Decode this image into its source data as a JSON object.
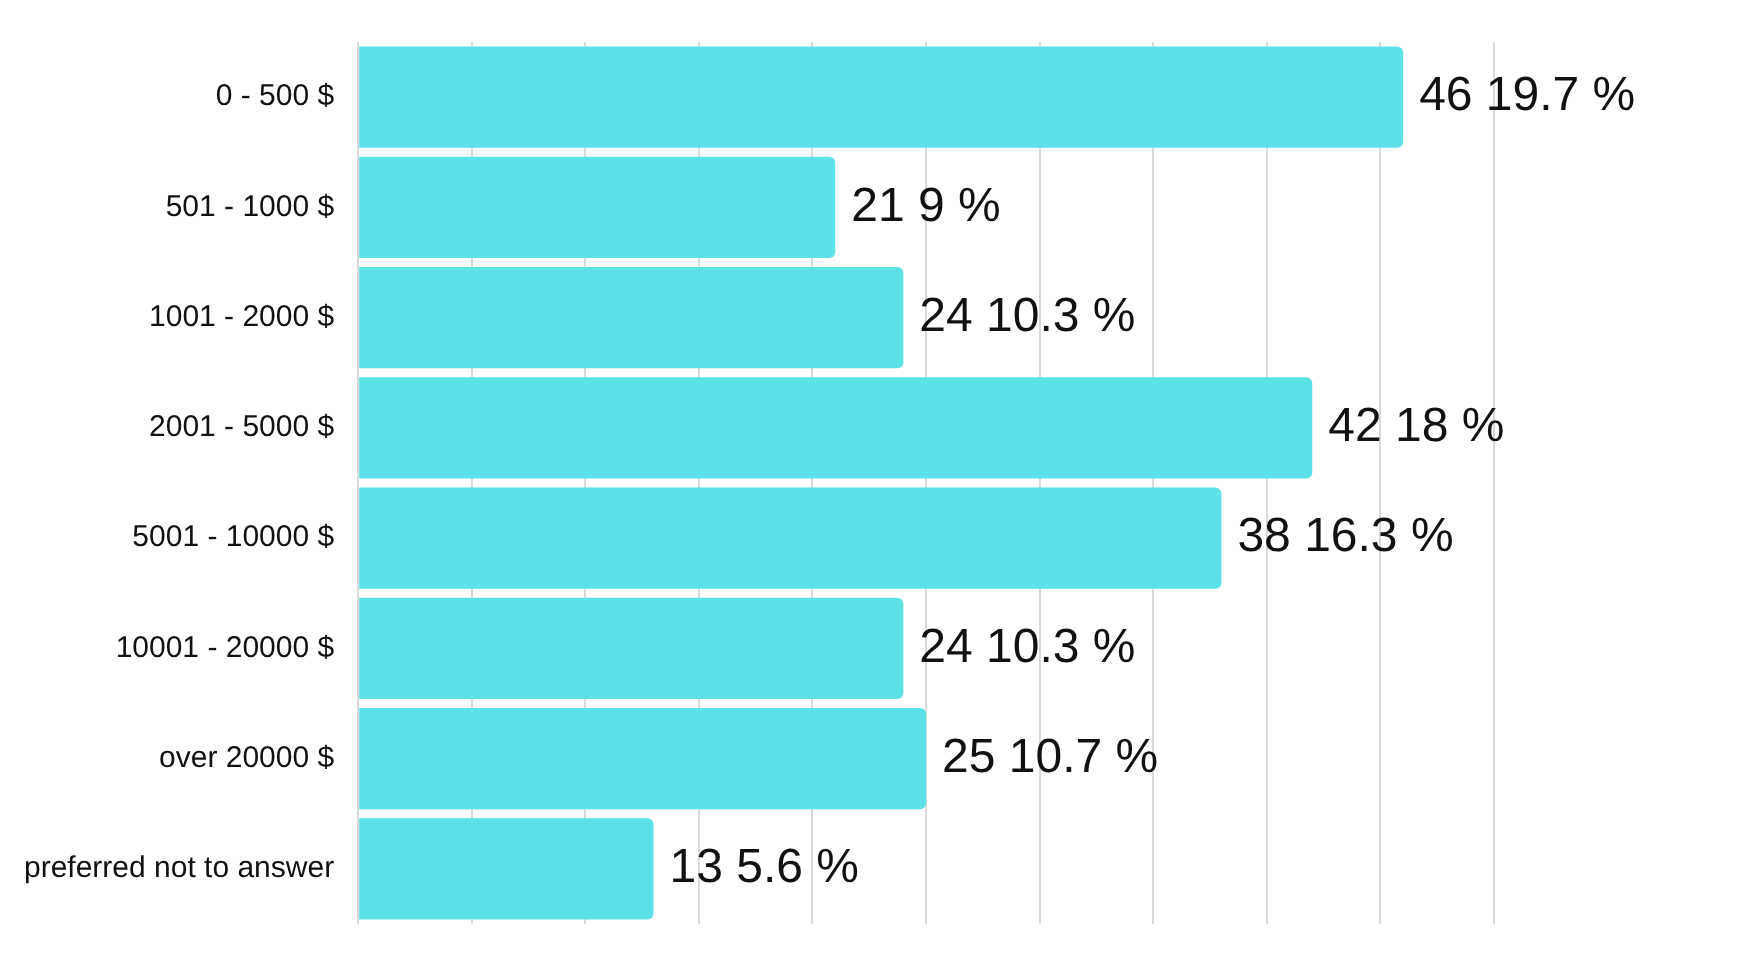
{
  "chart_data": {
    "type": "bar",
    "orientation": "horizontal",
    "categories": [
      "0 - 500 $",
      "501 - 1000 $",
      "1001 - 2000 $",
      "2001 - 5000 $",
      "5001 - 10000 $",
      "10001 - 20000 $",
      "over 20000 $",
      "preferred not to answer"
    ],
    "values": [
      46,
      21,
      24,
      42,
      38,
      24,
      25,
      13
    ],
    "value_labels": [
      "46 19.7 %",
      "21 9 %",
      "24 10.3 %",
      "42 18 %",
      "38 16.3 %",
      "24 10.3 %",
      "25 10.7 %",
      "13 5.6 %"
    ],
    "color": "#5ce1e6",
    "grid": "x",
    "tick_labels": "y",
    "legend": false
  }
}
